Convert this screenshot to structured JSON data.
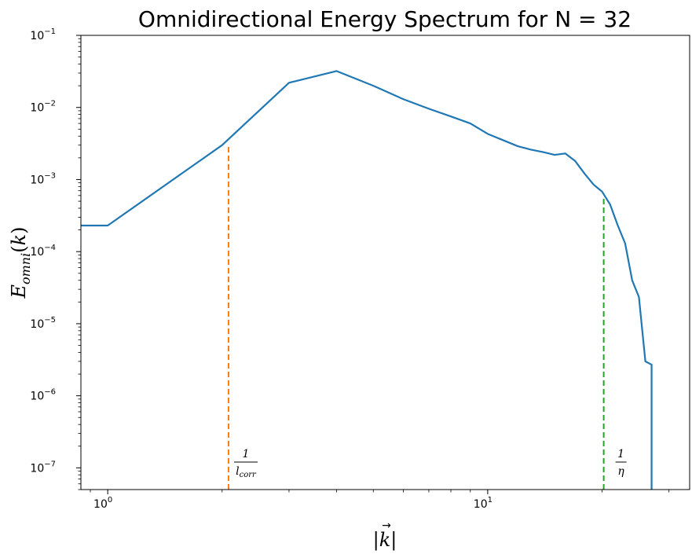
{
  "chart_data": {
    "type": "line",
    "title": "Omnidirectional Energy Spectrum for N = 32",
    "xlabel": "|k⃗|",
    "ylabel": "E_omni(k)",
    "xscale": "log",
    "yscale": "log",
    "xlim": [
      0.85,
      34
    ],
    "ylim": [
      5e-08,
      0.1
    ],
    "grid": false,
    "x_ticks": [
      {
        "value": 1,
        "base": "10",
        "exp": "0"
      },
      {
        "value": 10,
        "base": "10",
        "exp": "1"
      }
    ],
    "y_ticks": [
      {
        "value": 1e-07,
        "base": "10",
        "exp": "−7"
      },
      {
        "value": 1e-06,
        "base": "10",
        "exp": "−6"
      },
      {
        "value": 1e-05,
        "base": "10",
        "exp": "−5"
      },
      {
        "value": 0.0001,
        "base": "10",
        "exp": "−4"
      },
      {
        "value": 0.001,
        "base": "10",
        "exp": "−3"
      },
      {
        "value": 0.01,
        "base": "10",
        "exp": "−2"
      },
      {
        "value": 0.1,
        "base": "10",
        "exp": "−1"
      }
    ],
    "series": [
      {
        "color": "#1f77b4",
        "points": [
          [
            0.85,
            0.00023
          ],
          [
            1,
            0.00023
          ],
          [
            2,
            0.003
          ],
          [
            3,
            0.022
          ],
          [
            4,
            0.032
          ],
          [
            5,
            0.02
          ],
          [
            6,
            0.013
          ],
          [
            7,
            0.0096
          ],
          [
            8,
            0.0075
          ],
          [
            9,
            0.006
          ],
          [
            10,
            0.0043
          ],
          [
            11,
            0.0035
          ],
          [
            12,
            0.0029
          ],
          [
            13,
            0.0026
          ],
          [
            14,
            0.0024
          ],
          [
            15,
            0.0022
          ],
          [
            16,
            0.0023
          ],
          [
            17,
            0.0018
          ],
          [
            18,
            0.0012
          ],
          [
            19,
            0.00085
          ],
          [
            20,
            0.00068
          ],
          [
            21,
            0.00045
          ],
          [
            22,
            0.00023
          ],
          [
            23,
            0.00013
          ],
          [
            24,
            4e-05
          ],
          [
            25,
            2.35e-05
          ],
          [
            26,
            3e-06
          ],
          [
            27,
            2.7e-06
          ],
          [
            27,
            4e-08
          ]
        ]
      }
    ],
    "vlines": [
      {
        "x": 2.08,
        "y_top": 0.0031,
        "color": "#ff7f0e",
        "style": "dashed",
        "label_num": "1",
        "label_den": "l",
        "label_den_sub": "corr"
      },
      {
        "x": 20.2,
        "y_top": 0.00055,
        "color": "#2ca02c",
        "style": "dashed",
        "label_num": "1",
        "label_den": "η",
        "label_den_sub": ""
      }
    ]
  }
}
